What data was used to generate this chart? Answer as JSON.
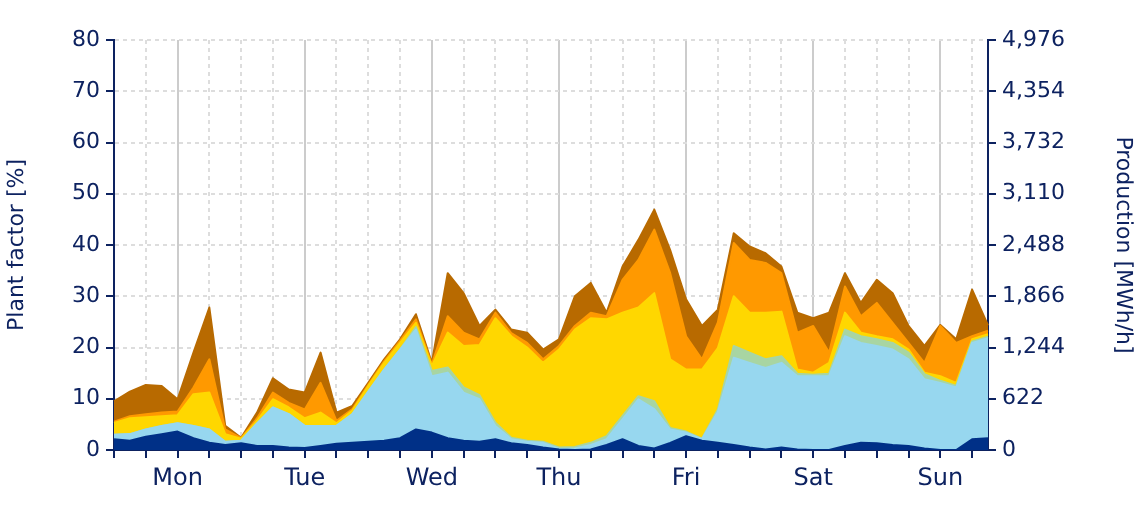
{
  "chart_data": {
    "type": "area",
    "stacked": true,
    "ylabel": "Plant factor [%]",
    "y2label": "Production [MWh/h]",
    "categories": [
      null,
      null,
      null,
      null,
      "Mon",
      null,
      null,
      null,
      null,
      null,
      null,
      null,
      "Tue",
      null,
      null,
      null,
      null,
      null,
      null,
      null,
      "Wed",
      null,
      null,
      null,
      null,
      null,
      null,
      null,
      "Thu",
      null,
      null,
      null,
      null,
      null,
      null,
      null,
      "Fri",
      null,
      null,
      null,
      null,
      null,
      null,
      null,
      "Sat",
      null,
      null,
      null,
      null,
      null,
      null,
      null,
      "Sun",
      null,
      null,
      null
    ],
    "ylim": [
      0,
      80
    ],
    "yticks": [
      0,
      10,
      20,
      30,
      40,
      50,
      60,
      70,
      80
    ],
    "y2lim": [
      0,
      4976
    ],
    "y2ticks": [
      0,
      622,
      {
        "value": 1244,
        "label": "1,244"
      },
      {
        "value": 1866,
        "label": "1,866"
      },
      {
        "value": 2488,
        "label": "2,488"
      },
      {
        "value": 3110,
        "label": "3,110"
      },
      {
        "value": 3732,
        "label": "3,732"
      },
      {
        "value": 4354,
        "label": "4,354"
      },
      {
        "value": 4976,
        "label": "4,976"
      }
    ],
    "grid": true,
    "series": [
      {
        "color": "#003087",
        "values": [
          2.1,
          1.8,
          2.6,
          3.1,
          3.6,
          2.3,
          1.4,
          1.0,
          1.3,
          0.8,
          0.8,
          0.5,
          0.4,
          0.8,
          1.2,
          1.4,
          1.6,
          1.8,
          2.3,
          4.0,
          3.4,
          2.3,
          1.8,
          1.6,
          2.1,
          1.3,
          1.0,
          0.5,
          0.1,
          0,
          0.1,
          1.0,
          2.1,
          0.8,
          0.3,
          1.4,
          2.7,
          1.8,
          1.4,
          1.0,
          0.5,
          0.1,
          0.5,
          0.1,
          0,
          0,
          0.8,
          1.4,
          1.3,
          1.0,
          0.8,
          0.3,
          0,
          0,
          2.1,
          2.3
        ]
      },
      {
        "color": "#97d7ef",
        "values": [
          0.9,
          1.3,
          1.4,
          1.6,
          1.6,
          2.4,
          2.6,
          0.6,
          0.5,
          4.4,
          7.5,
          6.5,
          4.3,
          3.9,
          3.5,
          5.6,
          9.8,
          13.9,
          17.3,
          19.5,
          11.0,
          12.8,
          9.4,
          8.3,
          2.6,
          0.8,
          0.6,
          0.9,
          0.1,
          0.3,
          0.9,
          1.1,
          3.9,
          9.1,
          7.7,
          2.6,
          0.7,
          0.3,
          6.0,
          17.0,
          16.5,
          15.9,
          16.5,
          14.3,
          14.4,
          14.4,
          21.4,
          19.5,
          19.0,
          18.6,
          16.9,
          13.5,
          13.1,
          12.2,
          18.8,
          19.5
        ]
      },
      {
        "color": "#a8d5a2",
        "values": [
          0,
          0,
          0,
          0,
          0,
          0,
          0,
          0,
          0,
          0,
          0,
          0,
          0,
          0,
          0,
          0,
          0,
          0,
          0,
          0.5,
          1.0,
          1.0,
          1.0,
          0.8,
          0.6,
          0.3,
          0.2,
          0.2,
          0.3,
          0.3,
          0.4,
          0.6,
          0.6,
          0.6,
          1.5,
          0.3,
          0.2,
          0.1,
          0.5,
          2.3,
          2.0,
          1.7,
          1.3,
          0.5,
          0.3,
          0.5,
          1.3,
          1.3,
          1.3,
          1.3,
          1.3,
          1.0,
          0.4,
          0.3,
          0.3,
          0.3
        ]
      },
      {
        "color": "#ffd700",
        "values": [
          2.3,
          3.1,
          2.4,
          1.9,
          1.6,
          6.2,
          7.2,
          1.5,
          0.4,
          0.5,
          1.6,
          1.3,
          1.5,
          2.6,
          0.5,
          0.7,
          1.1,
          1.3,
          1.3,
          0.8,
          1.0,
          6.8,
          8.1,
          9.8,
          20.4,
          19.8,
          18.2,
          15.4,
          19.1,
          22.9,
          24.3,
          22.8,
          20.2,
          17.3,
          21.1,
          13.4,
          12.1,
          13.5,
          12.0,
          9.7,
          7.8,
          9.1,
          8.7,
          0.8,
          0.4,
          2.1,
          3.3,
          0.7,
          0.6,
          0.7,
          0.6,
          0.3,
          0.9,
          0.6,
          0.4,
          0.5
        ]
      },
      {
        "color": "#ff9900",
        "values": [
          0.2,
          0.4,
          0.6,
          0.7,
          0.7,
          1.3,
          6.5,
          0.9,
          0.1,
          0.5,
          1.3,
          0.9,
          1.7,
          5.8,
          0.5,
          0.3,
          0.2,
          0.3,
          0.4,
          0.7,
          0.3,
          3.2,
          2.6,
          1.1,
          1.1,
          0.6,
          0.9,
          0.7,
          0.7,
          0.7,
          1.1,
          0.6,
          6.4,
          9.3,
          12.4,
          16.8,
          6.5,
          2.0,
          5.0,
          10.4,
          10.3,
          9.7,
          7.5,
          7.2,
          9.1,
          2.0,
          5.1,
          3.2,
          6.5,
          3.2,
          1.3,
          1.9,
          9.8,
          7.8,
          0.6,
          0.7
        ]
      },
      {
        "color": "#b86a00",
        "values": [
          4.0,
          4.8,
          5.7,
          5.2,
          2.4,
          6.8,
          10.1,
          0.7,
          0.1,
          1.1,
          2.8,
          2.6,
          3.3,
          5.9,
          1.6,
          0.6,
          0.4,
          0.4,
          0.3,
          1.0,
          0.3,
          8.4,
          7.7,
          2.6,
          0.6,
          0.7,
          2.0,
          1.9,
          1.3,
          5.8,
          5.8,
          0.7,
          2.6,
          3.9,
          3.9,
          4.5,
          7.2,
          6.5,
          2.5,
          1.9,
          2.6,
          1.9,
          1.3,
          3.9,
          1.5,
          7.8,
          2.6,
          2.6,
          4.5,
          5.8,
          3.3,
          3.3,
          0.2,
          0.7,
          9.1,
          1.0
        ]
      }
    ]
  }
}
